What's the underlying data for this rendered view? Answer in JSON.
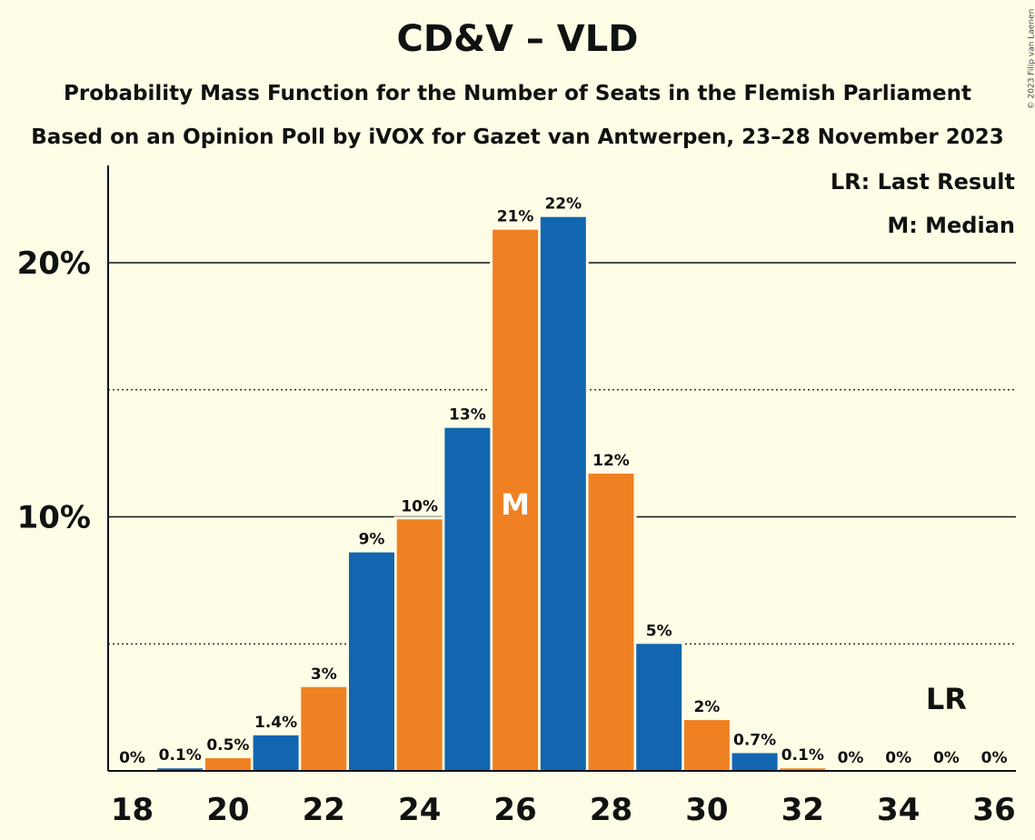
{
  "header": {
    "title": "CD&V – VLD",
    "subtitle1": "Probability Mass Function for the Number of Seats in the Flemish Parliament",
    "subtitle2": "Based on an Opinion Poll by iVOX for Gazet van Antwerpen, 23–28 November 2023",
    "copyright": "© 2023 Filip van Laenen"
  },
  "legend": {
    "lr": "LR: Last Result",
    "median": "M: Median"
  },
  "colors": {
    "background": "#FFFDE6",
    "blue": "#1266B0",
    "orange": "#F08122"
  },
  "chart_data": {
    "type": "bar",
    "title": "CD&V – VLD",
    "x": [
      18,
      19,
      20,
      21,
      22,
      23,
      24,
      25,
      26,
      27,
      28,
      29,
      30,
      31,
      32,
      33,
      34,
      35,
      36
    ],
    "values": [
      0,
      0.1,
      0.5,
      1.4,
      3.3,
      8.6,
      9.9,
      13.5,
      21.3,
      21.8,
      11.7,
      5.0,
      2.0,
      0.7,
      0.1,
      0,
      0,
      0,
      0
    ],
    "labels": [
      "0%",
      "0.1%",
      "0.5%",
      "1.4%",
      "3%",
      "9%",
      "10%",
      "13%",
      "21%",
      "22%",
      "12%",
      "5%",
      "2%",
      "0.7%",
      "0.1%",
      "0%",
      "0%",
      "0%",
      "0%"
    ],
    "xticks": [
      "18",
      "20",
      "22",
      "24",
      "26",
      "28",
      "30",
      "32",
      "34",
      "36"
    ],
    "yticks": [
      "10%",
      "20%"
    ],
    "ylim": [
      0,
      23.8
    ],
    "median": 26,
    "median_label": "M",
    "last_result": 35,
    "last_result_label": "LR",
    "grid": true,
    "legend_position": "top-right"
  }
}
